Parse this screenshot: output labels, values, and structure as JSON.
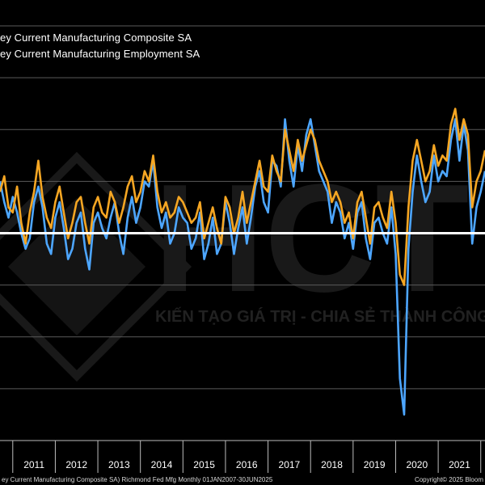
{
  "legend": {
    "items": [
      {
        "label": "ey Current Manufacturing Composite SA",
        "color": "#ffffff"
      },
      {
        "label": "ey Current Manufacturing Employment SA",
        "color": "#ffffff"
      }
    ]
  },
  "watermark": {
    "logo_text": "HCT",
    "slogan": "KIẾN TẠO GIÁ TRỊ - CHIA SẺ THÀNH CÔNG"
  },
  "footer": {
    "source": "ey Current Manufacturing Composite SA) Richmond Fed Mfg  Monthly 01JAN2007-30JUN2025",
    "copyright": "Copyright© 2025 Bloom"
  },
  "colors": {
    "background": "#000000",
    "composite": "#4da6ff",
    "employment": "#f5a623",
    "zero_line": "#ffffff",
    "grid": "#5a5a5a"
  },
  "chart_data": {
    "type": "line",
    "xlabel": "",
    "ylabel": "",
    "x_ticks": [
      "2011",
      "2012",
      "2013",
      "2014",
      "2015",
      "2016",
      "2017",
      "2018",
      "2019",
      "2020",
      "2021"
    ],
    "xlim": [
      2010.7,
      2022.1
    ],
    "ylim": [
      -40,
      45
    ],
    "y_gridlines": [
      -30,
      -20,
      -10,
      0,
      10,
      20,
      30,
      40
    ],
    "zero_line": 0,
    "grid": true,
    "series": [
      {
        "name": "Composite",
        "color": "#4da6ff",
        "x": [
          2010.7,
          2010.8,
          2010.9,
          2011.0,
          2011.1,
          2011.2,
          2011.3,
          2011.4,
          2011.5,
          2011.6,
          2011.7,
          2011.8,
          2011.9,
          2012.0,
          2012.1,
          2012.2,
          2012.3,
          2012.4,
          2012.5,
          2012.6,
          2012.7,
          2012.8,
          2012.9,
          2013.0,
          2013.1,
          2013.2,
          2013.3,
          2013.4,
          2013.5,
          2013.6,
          2013.7,
          2013.8,
          2013.9,
          2014.0,
          2014.1,
          2014.2,
          2014.3,
          2014.4,
          2014.5,
          2014.6,
          2014.7,
          2014.8,
          2014.9,
          2015.0,
          2015.1,
          2015.2,
          2015.3,
          2015.4,
          2015.5,
          2015.6,
          2015.7,
          2015.8,
          2015.9,
          2016.0,
          2016.1,
          2016.2,
          2016.3,
          2016.4,
          2016.5,
          2016.6,
          2016.7,
          2016.8,
          2016.9,
          2017.0,
          2017.1,
          2017.2,
          2017.3,
          2017.4,
          2017.5,
          2017.6,
          2017.7,
          2017.8,
          2017.9,
          2018.0,
          2018.1,
          2018.2,
          2018.3,
          2018.4,
          2018.5,
          2018.6,
          2018.7,
          2018.8,
          2018.9,
          2019.0,
          2019.1,
          2019.2,
          2019.3,
          2019.4,
          2019.5,
          2019.6,
          2019.7,
          2019.8,
          2019.9,
          2020.0,
          2020.1,
          2020.2,
          2020.3,
          2020.4,
          2020.5,
          2020.6,
          2020.7,
          2020.8,
          2020.9,
          2021.0,
          2021.1,
          2021.2,
          2021.3,
          2021.4,
          2021.5,
          2021.6,
          2021.7,
          2021.8,
          2021.9,
          2022.0,
          2022.1
        ],
        "values": [
          10,
          6,
          3,
          7,
          4,
          0,
          -3,
          -1,
          6,
          9,
          5,
          -2,
          -4,
          3,
          6,
          1,
          -5,
          -3,
          2,
          4,
          -3,
          -7,
          2,
          4,
          1,
          -1,
          3,
          6,
          0,
          -4,
          3,
          7,
          2,
          5,
          10,
          9,
          14,
          5,
          1,
          4,
          -2,
          0,
          5,
          3,
          2,
          -3,
          -1,
          4,
          -5,
          -2,
          3,
          -4,
          -2,
          6,
          2,
          -4,
          1,
          5,
          -2,
          3,
          9,
          12,
          6,
          4,
          14,
          13,
          9,
          22,
          14,
          9,
          17,
          12,
          19,
          22,
          17,
          12,
          10,
          8,
          2,
          6,
          4,
          -1,
          2,
          -3,
          4,
          6,
          -1,
          -5,
          2,
          3,
          0,
          -2,
          5,
          -4,
          -28,
          -35,
          -3,
          8,
          15,
          10,
          6,
          8,
          15,
          10,
          12,
          11,
          18,
          22,
          14,
          21,
          16,
          -2,
          5,
          8,
          12
        ]
      },
      {
        "name": "Employment",
        "color": "#f5a623",
        "x": [
          2010.7,
          2010.8,
          2010.9,
          2011.0,
          2011.1,
          2011.2,
          2011.3,
          2011.4,
          2011.5,
          2011.6,
          2011.7,
          2011.8,
          2011.9,
          2012.0,
          2012.1,
          2012.2,
          2012.3,
          2012.4,
          2012.5,
          2012.6,
          2012.7,
          2012.8,
          2012.9,
          2013.0,
          2013.1,
          2013.2,
          2013.3,
          2013.4,
          2013.5,
          2013.6,
          2013.7,
          2013.8,
          2013.9,
          2014.0,
          2014.1,
          2014.2,
          2014.3,
          2014.4,
          2014.5,
          2014.6,
          2014.7,
          2014.8,
          2014.9,
          2015.0,
          2015.1,
          2015.2,
          2015.3,
          2015.4,
          2015.5,
          2015.6,
          2015.7,
          2015.8,
          2015.9,
          2016.0,
          2016.1,
          2016.2,
          2016.3,
          2016.4,
          2016.5,
          2016.6,
          2016.7,
          2016.8,
          2016.9,
          2017.0,
          2017.1,
          2017.2,
          2017.3,
          2017.4,
          2017.5,
          2017.6,
          2017.7,
          2017.8,
          2017.9,
          2018.0,
          2018.1,
          2018.2,
          2018.3,
          2018.4,
          2018.5,
          2018.6,
          2018.7,
          2018.8,
          2018.9,
          2019.0,
          2019.1,
          2019.2,
          2019.3,
          2019.4,
          2019.5,
          2019.6,
          2019.7,
          2019.8,
          2019.9,
          2020.0,
          2020.1,
          2020.2,
          2020.3,
          2020.4,
          2020.5,
          2020.6,
          2020.7,
          2020.8,
          2020.9,
          2021.0,
          2021.1,
          2021.2,
          2021.3,
          2021.4,
          2021.5,
          2021.6,
          2021.7,
          2021.8,
          2021.9,
          2022.0,
          2022.1
        ],
        "values": [
          8,
          11,
          5,
          4,
          9,
          2,
          -2,
          4,
          8,
          14,
          7,
          3,
          1,
          6,
          9,
          4,
          -1,
          2,
          6,
          7,
          2,
          -2,
          5,
          7,
          4,
          3,
          8,
          6,
          2,
          5,
          9,
          11,
          6,
          8,
          12,
          10,
          15,
          8,
          4,
          6,
          3,
          4,
          7,
          6,
          4,
          2,
          3,
          6,
          -1,
          2,
          5,
          1,
          -2,
          7,
          5,
          0,
          3,
          8,
          2,
          6,
          10,
          14,
          9,
          8,
          15,
          12,
          10,
          20,
          16,
          12,
          18,
          14,
          17,
          20,
          18,
          14,
          12,
          10,
          6,
          8,
          6,
          2,
          4,
          -1,
          6,
          8,
          3,
          -2,
          5,
          6,
          3,
          1,
          8,
          2,
          -8,
          -10,
          5,
          14,
          18,
          14,
          10,
          12,
          17,
          13,
          15,
          14,
          21,
          24,
          18,
          22,
          19,
          5,
          10,
          12,
          16
        ]
      }
    ]
  }
}
